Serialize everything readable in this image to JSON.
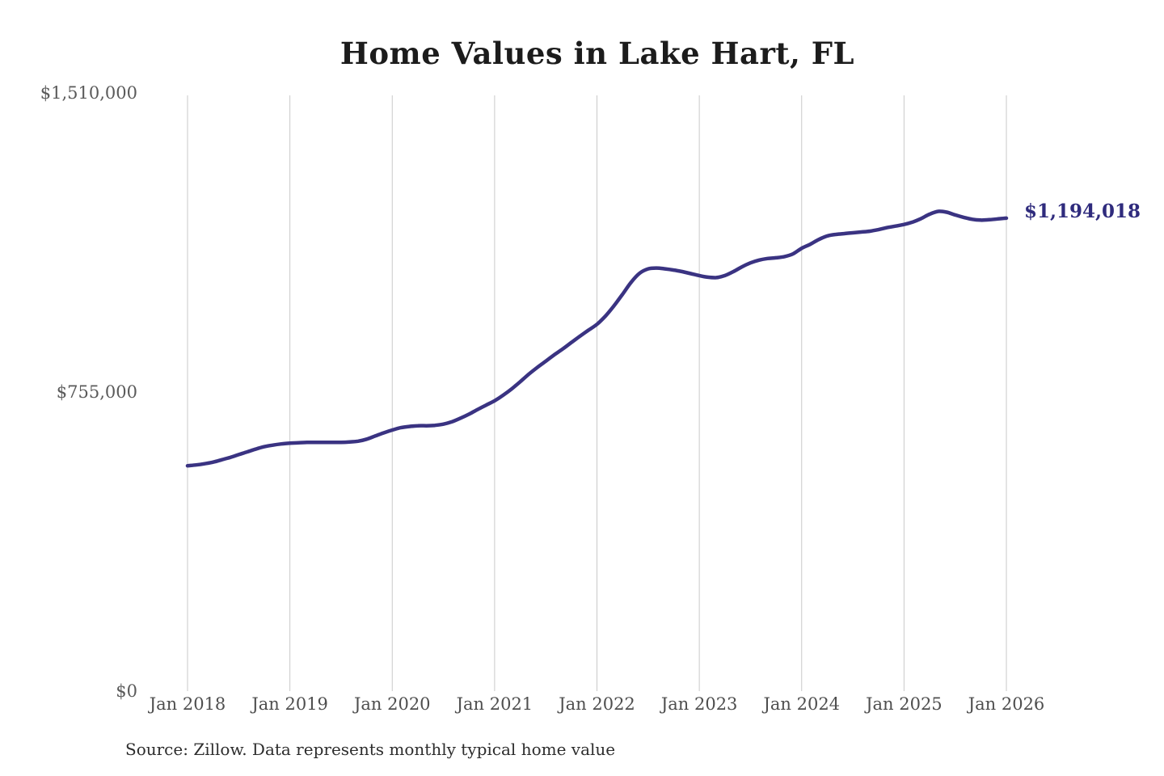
{
  "page": {
    "background": "#ffffff"
  },
  "chart": {
    "source_note": "Source: Zillow. Data represents monthly typical home value",
    "colors": {
      "title": "#1c1c1c",
      "line": "#3a3382",
      "end_label": "#2f2b7d",
      "axis_label": "#5a5a5a",
      "gridline": "#c9c9c9",
      "source": "#2d2d2d"
    }
  },
  "chart_data": {
    "type": "line",
    "title": "Home Values in Lake Hart, FL",
    "xlabel": "",
    "ylabel": "",
    "x_frequency": "monthly from Jan 2018 to Jan 2026",
    "grid": "vertical-only",
    "legend": "none",
    "ylim": [
      0,
      1510000
    ],
    "yticks": [
      {
        "value": 0,
        "label": "$0"
      },
      {
        "value": 755000,
        "label": "$755,000"
      },
      {
        "value": 1510000,
        "label": "$1,510,000"
      }
    ],
    "xticks": [
      "Jan 2018",
      "Jan 2019",
      "Jan 2020",
      "Jan 2021",
      "Jan 2022",
      "Jan 2023",
      "Jan 2024",
      "Jan 2025",
      "Jan 2026"
    ],
    "xtick_month_indexes": [
      0,
      12,
      24,
      36,
      48,
      60,
      72,
      84,
      96
    ],
    "series": [
      {
        "name": "Typical home value",
        "values": [
          569000,
          571000,
          574000,
          578000,
          584000,
          590000,
          597000,
          604000,
          611000,
          617000,
          621000,
          624000,
          626000,
          627000,
          628000,
          628000,
          628000,
          628000,
          628000,
          629000,
          631000,
          636000,
          644000,
          652000,
          659000,
          665000,
          668000,
          670000,
          670000,
          671000,
          674000,
          680000,
          689000,
          699000,
          711000,
          722000,
          733000,
          747000,
          763000,
          781000,
          800000,
          817000,
          833000,
          849000,
          864000,
          880000,
          896000,
          911000,
          926000,
          947000,
          973000,
          1002000,
          1032000,
          1055000,
          1066000,
          1068000,
          1066000,
          1063000,
          1059000,
          1054000,
          1049000,
          1045000,
          1044000,
          1049000,
          1059000,
          1071000,
          1081000,
          1088000,
          1092000,
          1094000,
          1097000,
          1104000,
          1118000,
          1128000,
          1140000,
          1149000,
          1153000,
          1155000,
          1157000,
          1159000,
          1161000,
          1165000,
          1170000,
          1174000,
          1178000,
          1184000,
          1193000,
          1204000,
          1211000,
          1209000,
          1202000,
          1196000,
          1191000,
          1189000,
          1190000,
          1192000,
          1194018
        ]
      }
    ],
    "annotation": {
      "label": "$1,194,018",
      "value": 1194018,
      "position": "right of last point"
    }
  }
}
